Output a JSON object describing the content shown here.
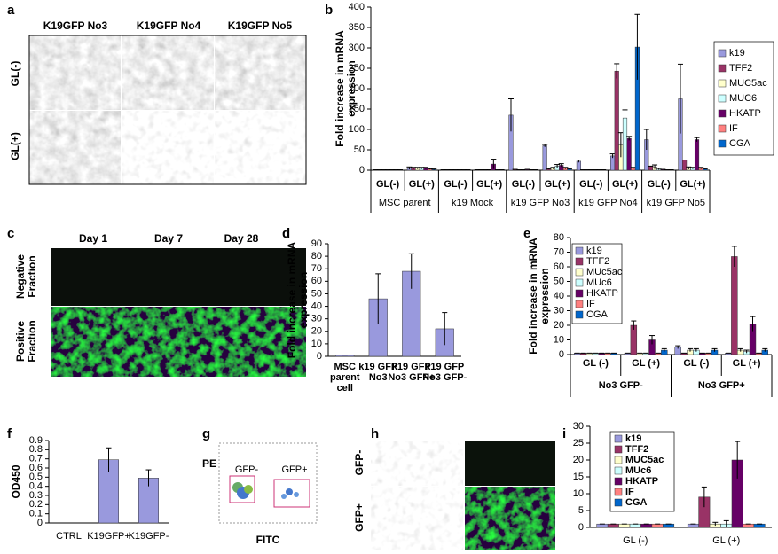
{
  "panel_labels": [
    "a",
    "b",
    "c",
    "d",
    "e",
    "f",
    "g",
    "h",
    "i"
  ],
  "panel_a": {
    "columns": [
      "K19GFP No3",
      "K19GFP No4",
      "K19GFP No5"
    ],
    "rows": [
      "GL(-)",
      "GL(+)"
    ]
  },
  "panel_c": {
    "columns": [
      "Day 1",
      "Day 7",
      "Day 28"
    ],
    "rows": [
      "Negative Fraction",
      "Positive Fraction"
    ]
  },
  "panel_g": {
    "y_label": "PE",
    "x_label": "FITC",
    "gates": [
      "GFP-",
      "GFP+"
    ]
  },
  "panel_h": {
    "rows": [
      "GFP-",
      "GFP+"
    ]
  },
  "chart_data": [
    {
      "type": "bar",
      "y_label": "Fold increase in mRNA expression",
      "categories": [
        "GL(-)",
        "GL(+)",
        "GL(-)",
        "GL(+)",
        "GL(-)",
        "GL(+)",
        "GL(-)",
        "GL(+)",
        "GL(-)",
        "GL(+)"
      ],
      "groups": [
        "MSC parent",
        "k19 Mock",
        "k19 GFP No3",
        "k19 GFP No4",
        "k19 GFP No5"
      ],
      "ylim": [
        0,
        400
      ],
      "yticks": [
        0,
        50,
        100,
        150,
        200,
        250,
        300,
        350,
        400
      ],
      "series": [
        {
          "name": "k19",
          "color": "#9999dd",
          "values": [
            1,
            5,
            1,
            1,
            135,
            60,
            22,
            35,
            75,
            175
          ],
          "errors": [
            0,
            3,
            0,
            0,
            40,
            3,
            3,
            5,
            25,
            85
          ]
        },
        {
          "name": "TFF2",
          "color": "#993366",
          "values": [
            1,
            5,
            1,
            1,
            2,
            3,
            1,
            243,
            10,
            25
          ],
          "errors": [
            0,
            2,
            0,
            0,
            0,
            1,
            0,
            18,
            0,
            0
          ]
        },
        {
          "name": "MUC5ac",
          "color": "#ffffcc",
          "values": [
            1,
            5,
            1,
            1,
            1,
            5,
            1,
            62,
            8,
            5
          ],
          "errors": [
            0,
            2,
            0,
            0,
            0,
            2,
            0,
            30,
            5,
            3
          ]
        },
        {
          "name": "MUC6",
          "color": "#ccffff",
          "values": [
            1,
            5,
            1,
            1,
            1,
            10,
            1,
            128,
            3,
            5
          ],
          "errors": [
            0,
            2,
            0,
            0,
            0,
            4,
            0,
            20,
            2,
            2
          ]
        },
        {
          "name": "HKATP",
          "color": "#660066",
          "values": [
            1,
            5,
            1,
            15,
            2,
            12,
            1,
            78,
            2,
            75
          ],
          "errors": [
            0,
            2,
            0,
            12,
            0,
            4,
            0,
            5,
            0,
            5
          ]
        },
        {
          "name": "IF",
          "color": "#ff8080",
          "values": [
            1,
            3,
            1,
            1,
            1,
            5,
            1,
            5,
            1,
            5
          ],
          "errors": [
            0,
            1,
            0,
            0,
            0,
            2,
            0,
            2,
            0,
            2
          ]
        },
        {
          "name": "CGA",
          "color": "#0066cc",
          "values": [
            1,
            2,
            1,
            1,
            1,
            3,
            1,
            302,
            1,
            3
          ],
          "errors": [
            0,
            1,
            0,
            0,
            0,
            1,
            0,
            80,
            0,
            1
          ]
        }
      ]
    },
    {
      "type": "bar",
      "y_label": "Fold increase in mRNA expression",
      "categories": [
        "MSC parent cell",
        "k19 GFP No3",
        "k19 GFP No3 GFP+",
        "k19 GFP No3 GFP-"
      ],
      "color": "#9999dd",
      "values": [
        1,
        46,
        68,
        22
      ],
      "errors": [
        0,
        20,
        14,
        13
      ],
      "ylim": [
        0,
        90
      ],
      "yticks": [
        0,
        10,
        20,
        30,
        40,
        50,
        60,
        70,
        80,
        90
      ]
    },
    {
      "type": "bar",
      "y_label": "Fold increase in mRNA expression",
      "categories": [
        "GL (-)",
        "GL (+)",
        "GL (-)",
        "GL (+)"
      ],
      "groups": [
        "No3 GFP-",
        "No3 GFP+"
      ],
      "ylim": [
        0,
        80
      ],
      "yticks": [
        0,
        10,
        20,
        30,
        40,
        50,
        60,
        70,
        80
      ],
      "series": [
        {
          "name": "k19",
          "color": "#9999dd",
          "values": [
            1,
            1,
            5,
            1
          ],
          "errors": [
            0,
            0,
            1,
            0
          ]
        },
        {
          "name": "TFF2",
          "color": "#993366",
          "values": [
            1,
            20,
            1,
            67
          ],
          "errors": [
            0,
            3,
            0,
            7
          ]
        },
        {
          "name": "MUc5ac",
          "color": "#ffffcc",
          "values": [
            1,
            1,
            3,
            3
          ],
          "errors": [
            0,
            0,
            1,
            1
          ]
        },
        {
          "name": "MUc6",
          "color": "#ccffff",
          "values": [
            1,
            1,
            3,
            2
          ],
          "errors": [
            0,
            0,
            1,
            1
          ]
        },
        {
          "name": "HKATP",
          "color": "#660066",
          "values": [
            1,
            10,
            1,
            21
          ],
          "errors": [
            0,
            3,
            0,
            5
          ]
        },
        {
          "name": "IF",
          "color": "#ff8080",
          "values": [
            1,
            1,
            1,
            1
          ],
          "errors": [
            0,
            0,
            0,
            0
          ]
        },
        {
          "name": "CGA",
          "color": "#0066cc",
          "values": [
            1,
            3,
            3,
            3
          ],
          "errors": [
            0,
            1,
            1,
            1
          ]
        }
      ]
    },
    {
      "type": "bar",
      "y_label": "OD450",
      "categories": [
        "CTRL",
        "K19GFP+",
        "K19GFP-"
      ],
      "color": "#9999dd",
      "values": [
        0,
        0.69,
        0.49
      ],
      "errors": [
        0,
        0.13,
        0.09
      ],
      "ylim": [
        0,
        0.9
      ],
      "yticks": [
        0,
        0.1,
        0.2,
        0.3,
        0.4,
        0.5,
        0.6,
        0.7,
        0.8,
        0.9
      ]
    },
    {
      "type": "bar",
      "categories": [
        "GL (-)",
        "GL (+)"
      ],
      "ylim": [
        0,
        30
      ],
      "yticks": [
        0,
        5,
        10,
        15,
        20,
        25,
        30
      ],
      "series": [
        {
          "name": "k19",
          "color": "#9999dd",
          "values": [
            1,
            1
          ],
          "errors": [
            0,
            0
          ]
        },
        {
          "name": "TFF2",
          "color": "#993366",
          "values": [
            1,
            9
          ],
          "errors": [
            0,
            3
          ]
        },
        {
          "name": "MUC5ac",
          "color": "#ffffcc",
          "values": [
            1,
            1
          ],
          "errors": [
            0,
            0.5
          ]
        },
        {
          "name": "MUc6",
          "color": "#ccffff",
          "values": [
            1,
            1
          ],
          "errors": [
            0,
            1
          ]
        },
        {
          "name": "HKATP",
          "color": "#660066",
          "values": [
            1,
            20
          ],
          "errors": [
            0,
            5.5
          ]
        },
        {
          "name": "IF",
          "color": "#ff8080",
          "values": [
            1,
            1
          ],
          "errors": [
            0,
            0
          ]
        },
        {
          "name": "CGA",
          "color": "#0066cc",
          "values": [
            1,
            1
          ],
          "errors": [
            0,
            0
          ]
        }
      ]
    }
  ]
}
